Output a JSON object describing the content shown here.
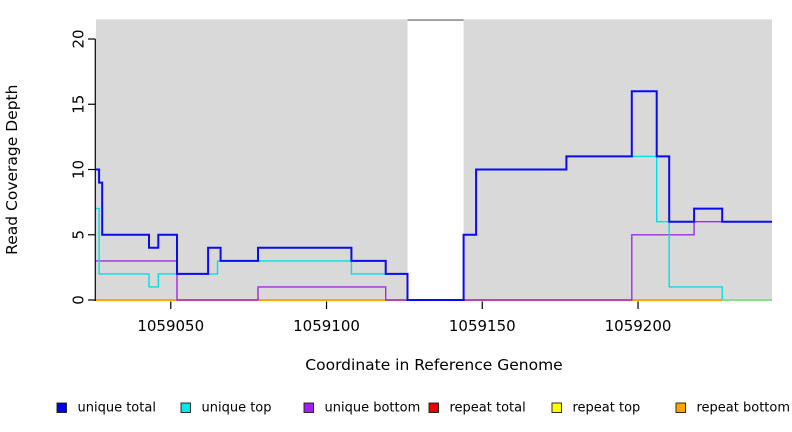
{
  "figure": {
    "xlabel": "Coordinate in Reference Genome",
    "ylabel": "Read Coverage Depth"
  },
  "chart_data": {
    "type": "line",
    "subtype": "step-coverage",
    "title": "",
    "xlabel": "Coordinate in Reference Genome",
    "ylabel": "Read Coverage Depth",
    "xlim": [
      1059026,
      1059243
    ],
    "ylim": [
      0,
      21.5
    ],
    "x_ticks": [
      1059050,
      1059100,
      1059150,
      1059200
    ],
    "y_ticks": [
      0,
      5,
      10,
      15,
      20
    ],
    "grid": false,
    "plot_bg_color": "#d9d9d9",
    "gap_region": {
      "x_start": 1059126,
      "x_end": 1059144,
      "fill": "#ffffff",
      "top_line_color": "#909090"
    },
    "series": [
      {
        "name": "repeat total",
        "color": "#e80000",
        "steps": [
          [
            1059026,
            0
          ],
          [
            1059243,
            0
          ]
        ]
      },
      {
        "name": "repeat top",
        "color": "#ffff00",
        "steps": [
          [
            1059026,
            0
          ],
          [
            1059243,
            0
          ]
        ]
      },
      {
        "name": "repeat bottom",
        "color": "#ffa500",
        "steps": [
          [
            1059026,
            0
          ],
          [
            1059227,
            0
          ]
        ]
      },
      {
        "name": "unique bottom",
        "color": "#a02be2",
        "steps": [
          [
            1059026,
            3
          ],
          [
            1059052,
            0
          ],
          [
            1059078,
            1
          ],
          [
            1059119,
            0
          ],
          [
            1059198,
            5
          ],
          [
            1059218,
            6
          ],
          [
            1059243,
            6
          ]
        ]
      },
      {
        "name": "unique top",
        "color": "#00e0e6",
        "steps": [
          [
            1059026,
            7
          ],
          [
            1059027,
            2
          ],
          [
            1059043,
            1
          ],
          [
            1059046,
            2
          ],
          [
            1059065,
            3
          ],
          [
            1059108,
            2
          ],
          [
            1059126,
            0
          ],
          [
            1059144,
            5
          ],
          [
            1059148,
            10
          ],
          [
            1059177,
            11
          ],
          [
            1059206,
            6
          ],
          [
            1059210,
            1
          ],
          [
            1059227,
            0
          ],
          [
            1059243,
            0
          ]
        ]
      },
      {
        "name": "unique total",
        "color": "#0b0bf2",
        "steps": [
          [
            1059026,
            10
          ],
          [
            1059027,
            9
          ],
          [
            1059028,
            5
          ],
          [
            1059043,
            4
          ],
          [
            1059046,
            5
          ],
          [
            1059052,
            2
          ],
          [
            1059062,
            4
          ],
          [
            1059066,
            3
          ],
          [
            1059078,
            4
          ],
          [
            1059108,
            3
          ],
          [
            1059119,
            2
          ],
          [
            1059126,
            0
          ],
          [
            1059144,
            5
          ],
          [
            1059148,
            10
          ],
          [
            1059177,
            11
          ],
          [
            1059198,
            16
          ],
          [
            1059206,
            11
          ],
          [
            1059210,
            6
          ],
          [
            1059218,
            7
          ],
          [
            1059227,
            6
          ],
          [
            1059243,
            6
          ]
        ]
      }
    ],
    "overlap_artifact": {
      "x_start": 1059227,
      "x_end": 1059243,
      "value": 0,
      "color": "#8ee68e"
    },
    "legend": {
      "position": "bottom",
      "items": [
        {
          "label": "unique total",
          "color": "#0000ee"
        },
        {
          "label": "unique top",
          "color": "#00e8e8"
        },
        {
          "label": "unique bottom",
          "color": "#a020f0"
        },
        {
          "label": "repeat total",
          "color": "#e80000"
        },
        {
          "label": "repeat top",
          "color": "#ffff00"
        },
        {
          "label": "repeat bottom",
          "color": "#ffa500"
        }
      ]
    }
  }
}
